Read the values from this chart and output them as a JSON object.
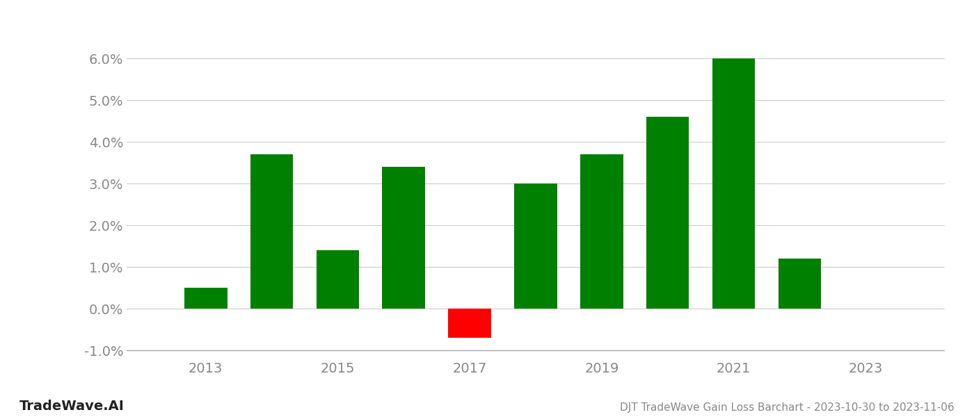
{
  "years": [
    2013,
    2014,
    2015,
    2016,
    2017,
    2018,
    2019,
    2020,
    2021,
    2022,
    2023
  ],
  "values": [
    0.005,
    0.037,
    0.014,
    0.034,
    -0.007,
    0.03,
    0.037,
    0.046,
    0.06,
    0.012,
    null
  ],
  "positive_color": "#008000",
  "negative_color": "#ff0000",
  "background_color": "#ffffff",
  "title": "DJT TradeWave Gain Loss Barchart - 2023-10-30 to 2023-11-06",
  "watermark": "TradeWave.AI",
  "ylim": [
    -0.012,
    0.068
  ],
  "yticks": [
    -0.01,
    0.0,
    0.01,
    0.02,
    0.03,
    0.04,
    0.05,
    0.06
  ],
  "xtick_years": [
    2013,
    2015,
    2017,
    2019,
    2021,
    2023
  ],
  "xlim": [
    2011.8,
    2024.2
  ],
  "bar_width": 0.65,
  "grid_color": "#cccccc",
  "axis_color": "#aaaaaa",
  "tick_label_color": "#888888",
  "title_color": "#888888",
  "watermark_color": "#222222",
  "title_fontsize": 11,
  "tick_fontsize": 14,
  "watermark_fontsize": 14
}
